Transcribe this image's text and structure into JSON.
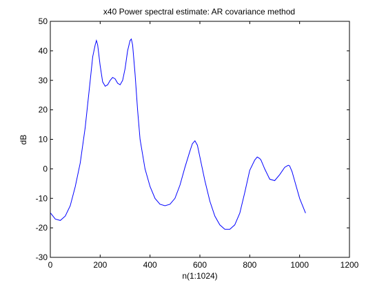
{
  "chart_data": {
    "type": "line",
    "title": "x40 Power spectral estimate: AR covariance method",
    "xlabel": "n(1:1024)",
    "ylabel": "dB",
    "xlim": [
      0,
      1200
    ],
    "ylim": [
      -30,
      50
    ],
    "xticks": [
      0,
      200,
      400,
      600,
      800,
      1000,
      1200
    ],
    "yticks": [
      -30,
      -20,
      -10,
      0,
      10,
      20,
      30,
      40,
      50
    ],
    "grid": false,
    "series": [
      {
        "color": "#0000ff",
        "x": [
          1,
          20,
          40,
          60,
          80,
          100,
          120,
          140,
          160,
          170,
          180,
          185,
          190,
          200,
          210,
          220,
          230,
          240,
          250,
          260,
          270,
          280,
          290,
          300,
          310,
          320,
          325,
          330,
          340,
          350,
          360,
          380,
          400,
          420,
          440,
          460,
          480,
          500,
          520,
          540,
          560,
          570,
          580,
          590,
          600,
          620,
          640,
          660,
          680,
          700,
          720,
          740,
          760,
          780,
          800,
          820,
          830,
          840,
          845,
          850,
          860,
          880,
          900,
          920,
          940,
          950,
          955,
          960,
          970,
          980,
          1000,
          1024
        ],
        "y": [
          -15,
          -17,
          -17.5,
          -16,
          -12.5,
          -6,
          2,
          14,
          30,
          38,
          42,
          43.5,
          42,
          35,
          29.5,
          28,
          28.5,
          30,
          31,
          30.5,
          29,
          28.5,
          30,
          34,
          40,
          43.5,
          44,
          42,
          32,
          20,
          10,
          0,
          -6,
          -10,
          -12,
          -12.5,
          -12,
          -10,
          -5.5,
          0.5,
          6,
          8.5,
          9.5,
          8,
          4,
          -4,
          -11,
          -16,
          -19,
          -20.5,
          -20.5,
          -19,
          -15,
          -8,
          -0.5,
          3,
          4,
          3.5,
          3,
          2,
          0,
          -3.5,
          -4,
          -2,
          0.5,
          1,
          1.2,
          1,
          -1,
          -4,
          -10,
          -15
        ]
      }
    ]
  }
}
